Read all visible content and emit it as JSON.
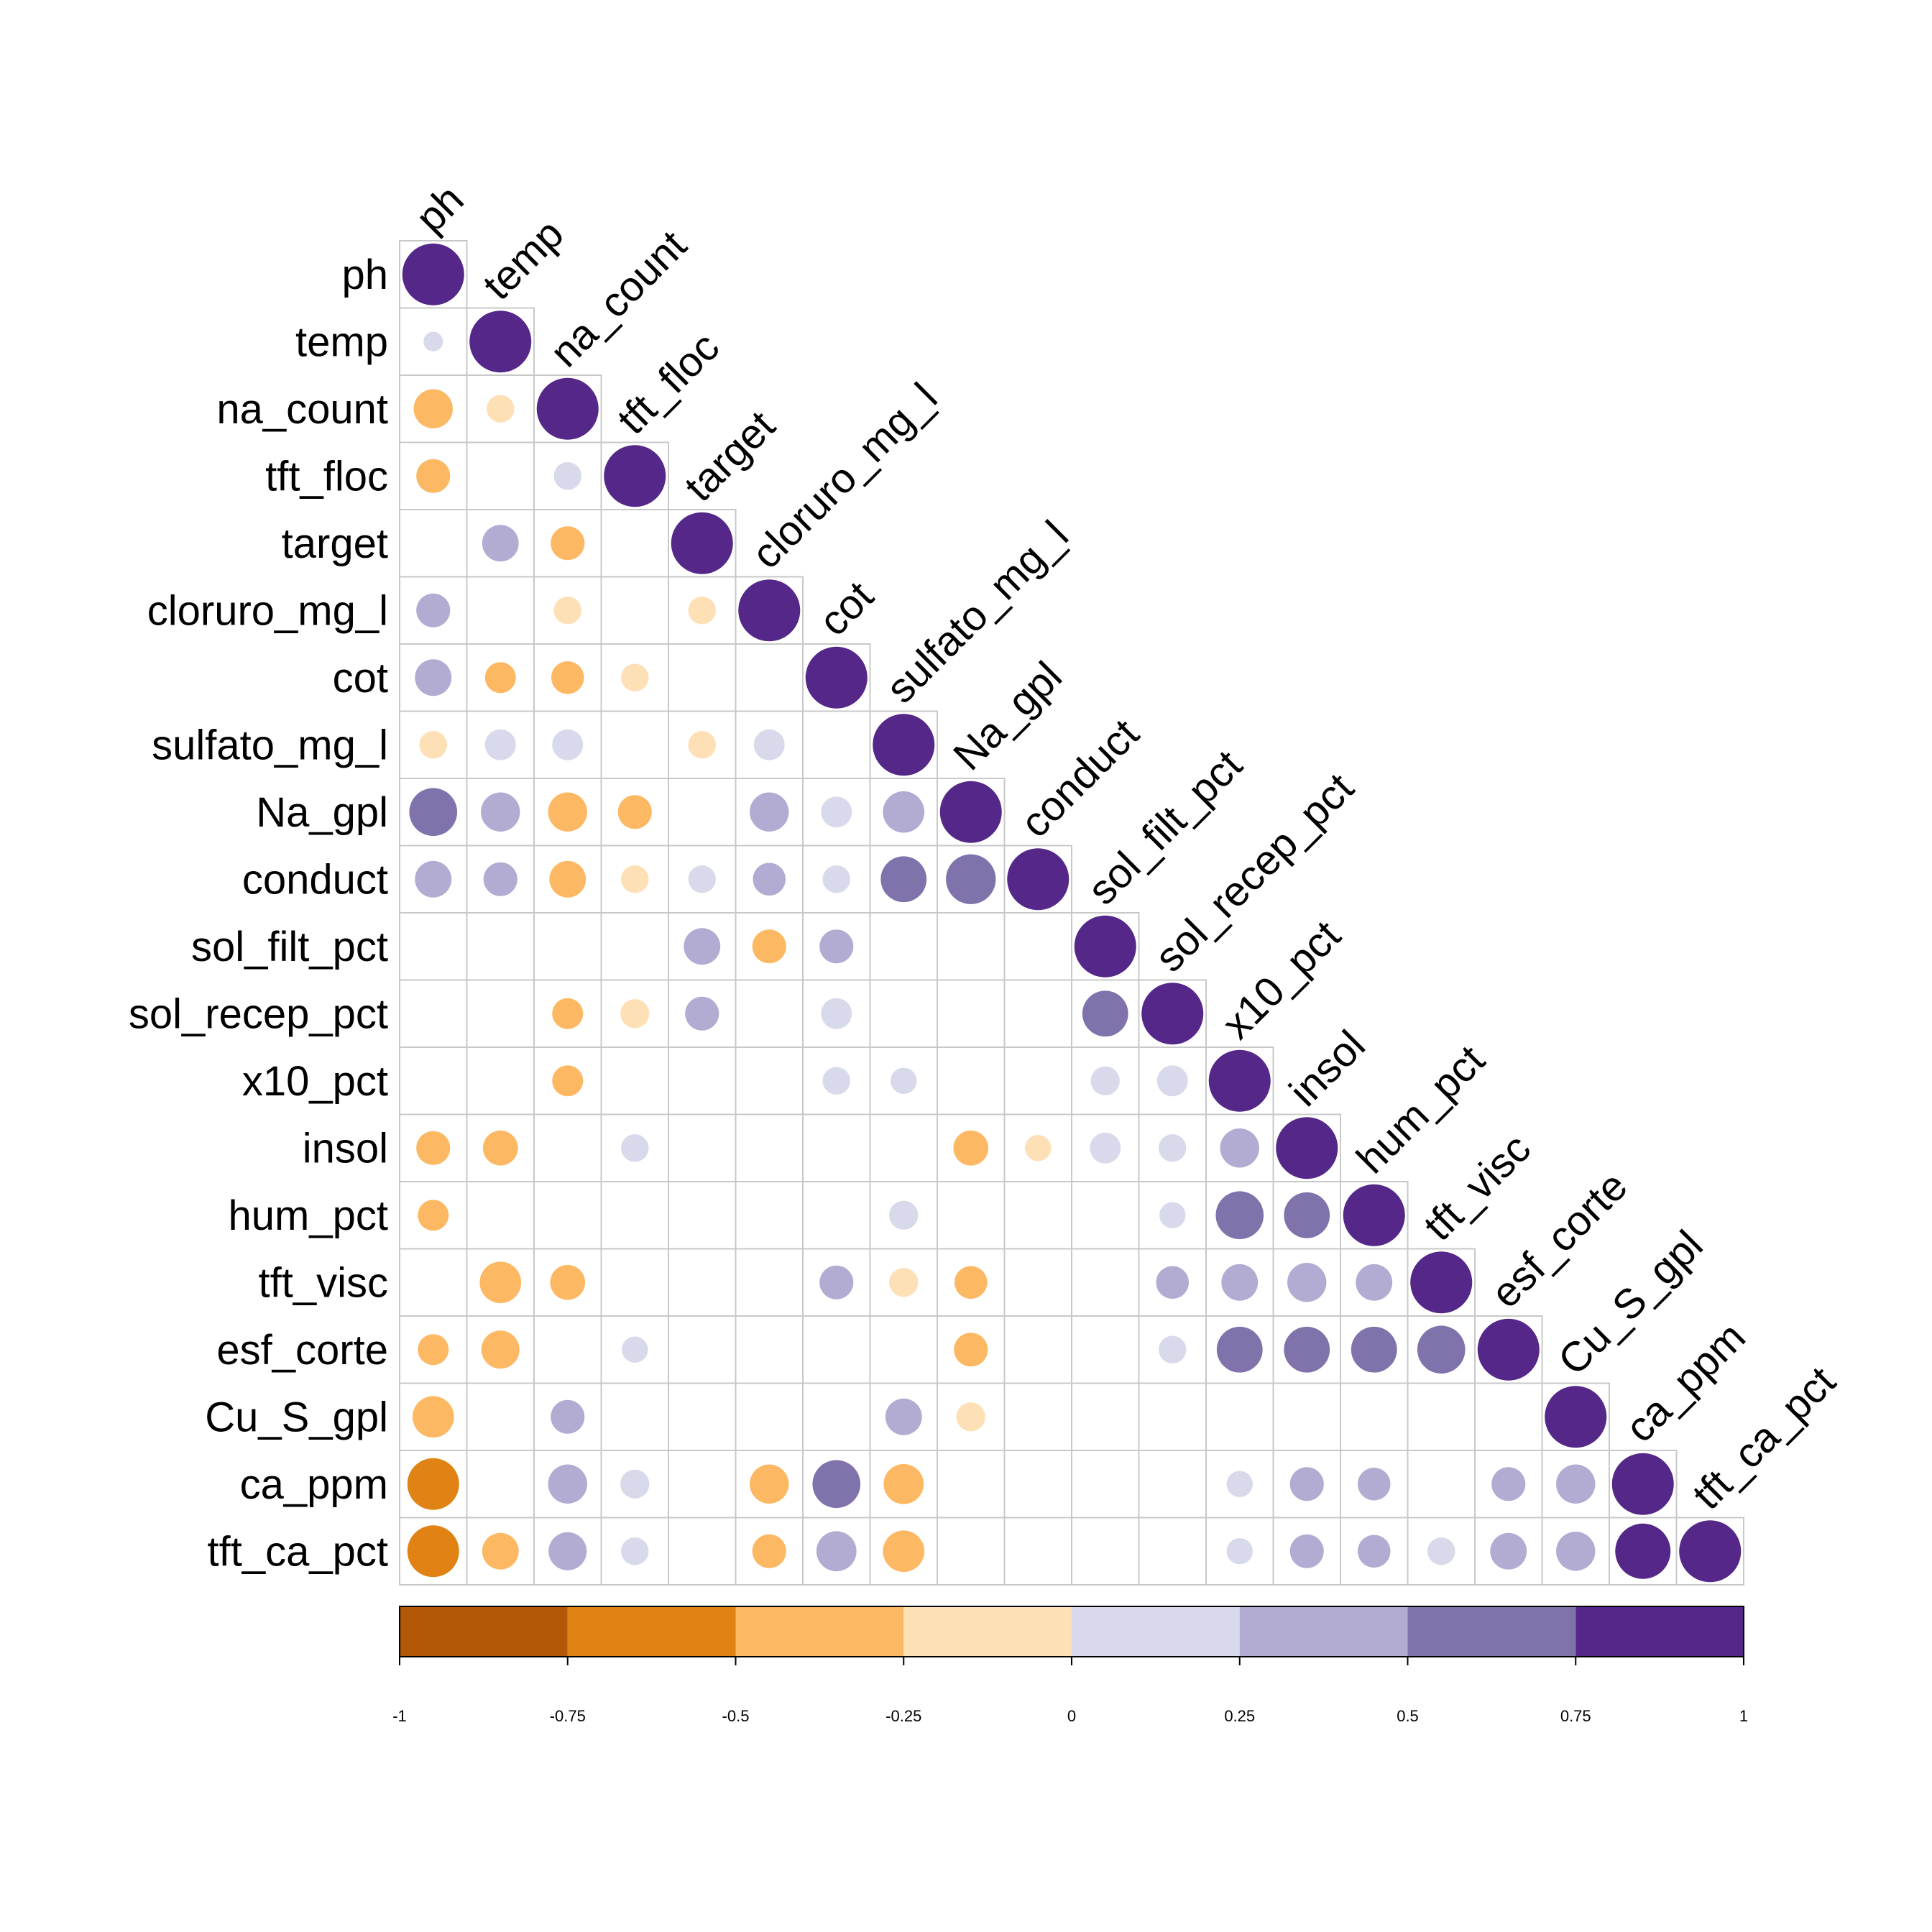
{
  "chart_data": {
    "type": "heatmap",
    "style": "lower-triangle correlation circles",
    "variables": [
      "ph",
      "temp",
      "na_count",
      "tft_floc",
      "target",
      "cloruro_mg_l",
      "cot",
      "sulfato_mg_l",
      "Na_gpl",
      "conduct",
      "sol_filt_pct",
      "sol_recep_pct",
      "x10_pct",
      "insol",
      "hum_pct",
      "tft_visc",
      "esf_corte",
      "Cu_S_gpl",
      "ca_ppm",
      "tft_ca_pct"
    ],
    "matrix": [
      [
        1
      ],
      [
        0.1,
        1
      ],
      [
        -0.4,
        -0.2,
        1
      ],
      [
        -0.3,
        0,
        0.2,
        1
      ],
      [
        0,
        0.35,
        -0.3,
        0,
        1
      ],
      [
        0.3,
        0,
        -0.2,
        0,
        -0.2,
        1
      ],
      [
        0.35,
        -0.25,
        -0.28,
        -0.2,
        0,
        0,
        1
      ],
      [
        -0.2,
        0.25,
        0.25,
        0,
        -0.2,
        0.25,
        0,
        1
      ],
      [
        0.6,
        0.4,
        -0.4,
        -0.3,
        0,
        0.4,
        0.25,
        0.45,
        1
      ],
      [
        0.35,
        0.3,
        -0.35,
        -0.2,
        0.2,
        0.28,
        0.2,
        0.55,
        0.65,
        1
      ],
      [
        0,
        0,
        0,
        0,
        0.35,
        -0.3,
        0.3,
        0,
        0,
        0,
        1
      ],
      [
        0,
        0,
        -0.25,
        -0.22,
        0.3,
        0,
        0.25,
        0,
        0,
        0,
        0.55,
        1
      ],
      [
        0,
        0,
        -0.25,
        0,
        0,
        0,
        0.2,
        0.18,
        0,
        0,
        0.22,
        0.25,
        1
      ],
      [
        -0.3,
        -0.32,
        0,
        0.2,
        0,
        0,
        0,
        0,
        -0.32,
        -0.18,
        0.25,
        0.2,
        0.4,
        1
      ],
      [
        -0.25,
        0,
        0,
        0,
        0,
        0,
        0,
        0.22,
        0,
        0,
        0,
        0.18,
        0.6,
        0.55,
        1
      ],
      [
        0,
        -0.45,
        -0.32,
        0,
        0,
        0,
        0.3,
        -0.22,
        -0.28,
        0,
        0,
        0.28,
        0.35,
        0.4,
        0.35,
        1
      ],
      [
        -0.25,
        -0.38,
        0,
        0.18,
        0,
        0,
        0,
        0,
        -0.3,
        0,
        0,
        0.2,
        0.55,
        0.55,
        0.55,
        0.6,
        1
      ],
      [
        -0.45,
        0,
        0.3,
        0,
        0,
        0,
        0,
        0.35,
        -0.22,
        0,
        0,
        0,
        0,
        0,
        0,
        0,
        0,
        1
      ],
      [
        -0.7,
        0,
        0.4,
        0.22,
        0,
        -0.4,
        0.6,
        -0.42,
        0,
        0,
        0,
        0,
        0.18,
        0.3,
        0.28,
        0,
        0.3,
        0.4,
        1
      ],
      [
        -0.7,
        -0.35,
        0.38,
        0.2,
        0,
        -0.3,
        0.42,
        -0.45,
        0,
        0,
        0,
        0,
        0.18,
        0.3,
        0.28,
        0.2,
        0.35,
        0.4,
        0.8,
        1
      ]
    ],
    "color_scale": {
      "breaks": [
        -1,
        -0.75,
        -0.5,
        -0.25,
        0,
        0.25,
        0.5,
        0.75,
        1
      ],
      "colors": [
        "#B35806",
        "#E08214",
        "#FDB863",
        "#FEE0B6",
        "#D8DAEB",
        "#B2ABD2",
        "#8073AC",
        "#542788"
      ],
      "tick_labels": [
        "-1",
        "-0.75",
        "-0.5",
        "-0.25",
        "0",
        "0.25",
        "0.5",
        "0.75",
        "1"
      ]
    },
    "legend_placement": "bottom"
  }
}
